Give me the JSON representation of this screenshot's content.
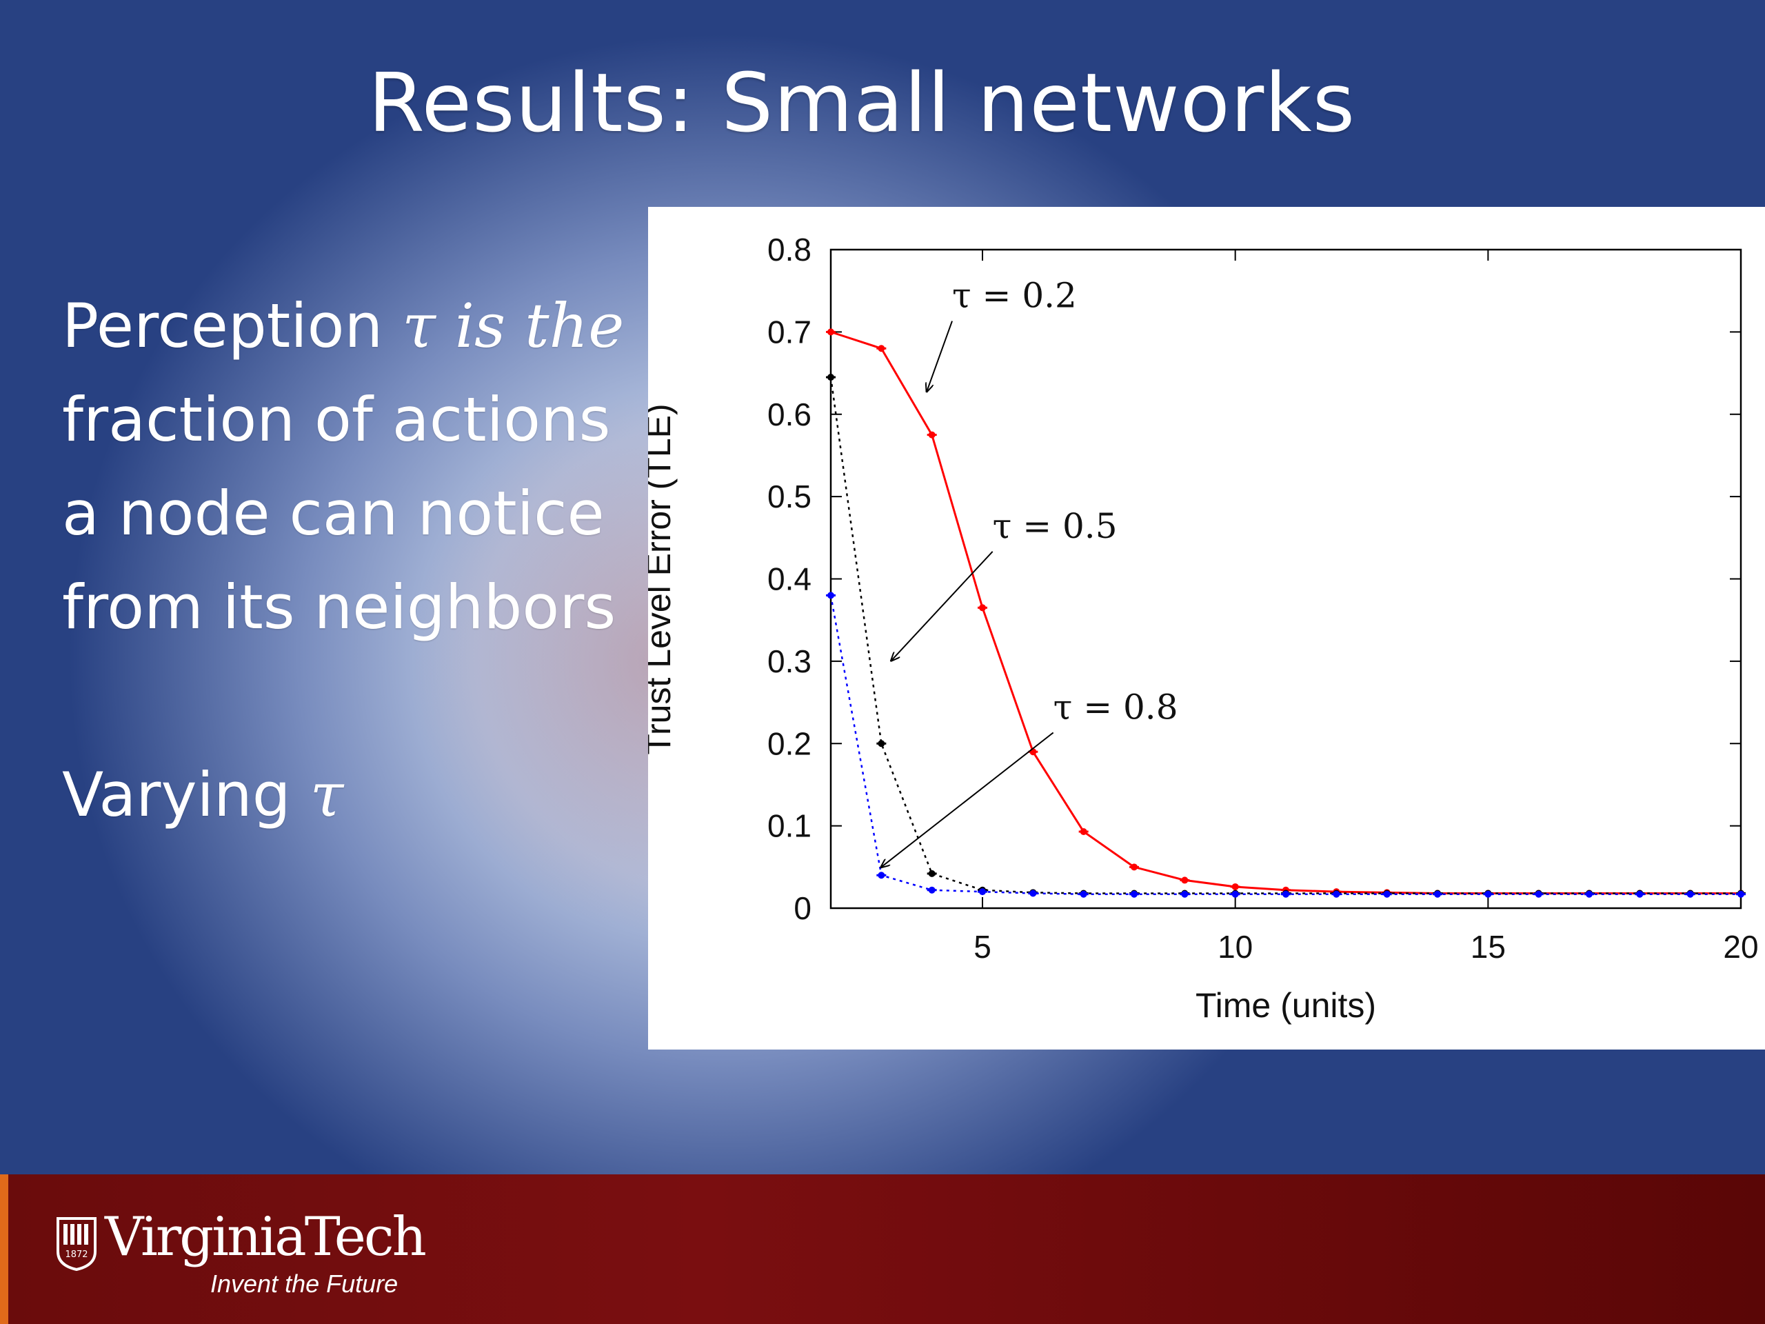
{
  "slide": {
    "title": "Results: Small networks",
    "bullets": {
      "p1_a": "Perception ",
      "p1_tau": "τ",
      "p1_b": " is the",
      "p2": "fraction of actions",
      "p3": "a node can notice",
      "p4": "from its neighbors",
      "varying_a": "Varying ",
      "varying_tau": "τ"
    }
  },
  "footer": {
    "logo_name": "VirginiaTech",
    "tagline": "Invent the Future",
    "seal_year": "1872",
    "colors": {
      "bar": "#6a0c0c",
      "accent": "#e06a1a"
    }
  },
  "chart_data": {
    "type": "line",
    "xlabel": "Time (units)",
    "ylabel": "Trust Level Error (TLE)",
    "xlim": [
      2,
      20
    ],
    "ylim": [
      0,
      0.8
    ],
    "xticks": [
      5,
      10,
      15,
      20
    ],
    "yticks": [
      0,
      0.1,
      0.2,
      0.3,
      0.4,
      0.5,
      0.6,
      0.7,
      0.8
    ],
    "ytick_labels": [
      "0",
      "0.1",
      "0.2",
      "0.3",
      "0.4",
      "0.5",
      "0.6",
      "0.7",
      "0.8"
    ],
    "xtick_labels": [
      "5",
      "10",
      "15",
      "20"
    ],
    "series": [
      {
        "color": "#ff0000",
        "style": "solid",
        "x": [
          2,
          3,
          4,
          5,
          6,
          7,
          8,
          9,
          10,
          11,
          12,
          13,
          14,
          15,
          16,
          17,
          18,
          19,
          20
        ],
        "y": [
          0.7,
          0.68,
          0.575,
          0.365,
          0.19,
          0.093,
          0.05,
          0.034,
          0.026,
          0.022,
          0.02,
          0.019,
          0.018,
          0.018,
          0.018,
          0.018,
          0.018,
          0.018,
          0.018
        ]
      },
      {
        "color": "#000000",
        "style": "dotted",
        "x": [
          2,
          3,
          4,
          5,
          6,
          7,
          8,
          9,
          10,
          11,
          12,
          13,
          14,
          15,
          16,
          17,
          18,
          19,
          20
        ],
        "y": [
          0.645,
          0.2,
          0.042,
          0.022,
          0.019,
          0.018,
          0.018,
          0.018,
          0.018,
          0.018,
          0.018,
          0.018,
          0.018,
          0.018,
          0.018,
          0.018,
          0.018,
          0.018,
          0.018
        ]
      },
      {
        "color": "#0000ff",
        "style": "dotted",
        "x": [
          2,
          3,
          4,
          5,
          6,
          7,
          8,
          9,
          10,
          11,
          12,
          13,
          14,
          15,
          16,
          17,
          18,
          19,
          20
        ],
        "y": [
          0.38,
          0.04,
          0.022,
          0.02,
          0.018,
          0.017,
          0.017,
          0.017,
          0.017,
          0.017,
          0.017,
          0.017,
          0.017,
          0.017,
          0.017,
          0.017,
          0.017,
          0.017,
          0.017
        ]
      }
    ],
    "annotations": [
      {
        "text": "τ = 0.2",
        "text_x": 4.4,
        "text_y": 0.725,
        "arrow_x": 3.9,
        "arrow_y": 0.628
      },
      {
        "text": "τ = 0.5",
        "text_x": 5.2,
        "text_y": 0.445,
        "arrow_x": 3.2,
        "arrow_y": 0.301
      },
      {
        "text": "τ = 0.8",
        "text_x": 6.4,
        "text_y": 0.225,
        "arrow_x": 3.0,
        "arrow_y": 0.05
      }
    ]
  }
}
